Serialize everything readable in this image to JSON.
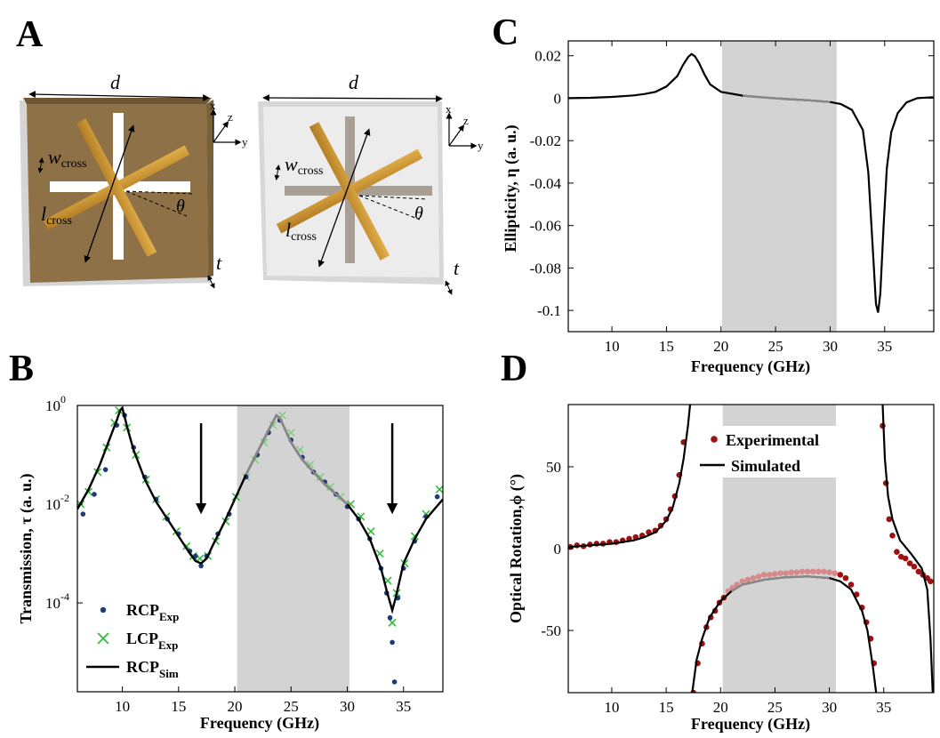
{
  "panels": {
    "A": {
      "letter": "A"
    },
    "B": {
      "letter": "B"
    },
    "C": {
      "letter": "C"
    },
    "D": {
      "letter": "D"
    }
  },
  "schematic": {
    "d_label": "d",
    "x_label": "x",
    "y_label": "y",
    "z_label": "z",
    "w_label": "w",
    "w_sub": "cross",
    "l_label": "l",
    "l_sub": "cross",
    "theta_label": "θ",
    "t_label": "t"
  },
  "colors": {
    "gold": "#c8922e",
    "gold_dark": "#a8701c",
    "substrate_gold": "#8f7148",
    "substrate_clear": "#eceded",
    "shade": "#d3d3d3",
    "navy": "#1f3a7a",
    "green": "#2fbf3a",
    "dark_red": "#a01010",
    "pink": "#d88a8a",
    "gray_line": "#888888"
  },
  "chart_data": [
    {
      "id": "B",
      "type": "line",
      "scale_y": "log",
      "xlabel": "Frequency (GHz)",
      "ylabel": "Transmission, τ (a. u.)",
      "xlim": [
        6,
        38.5
      ],
      "ylim_exp": [
        -5.8,
        0
      ],
      "xticks": [
        10,
        15,
        20,
        25,
        30,
        35
      ],
      "yticks": [
        {
          "exp": 0,
          "label": "10",
          "sup": "0"
        },
        {
          "exp": -2,
          "label": "10",
          "sup": "-2"
        },
        {
          "exp": -4,
          "label": "10",
          "sup": "-4"
        }
      ],
      "shaded": [
        20.2,
        30.2
      ],
      "arrows_x": [
        17,
        34
      ],
      "legend": {
        "position": "bottom-left",
        "items": [
          {
            "main": "RCP",
            "sub": "Exp",
            "marker": "dot"
          },
          {
            "main": "LCP",
            "sub": "Exp",
            "marker": "cross"
          },
          {
            "main": "RCP",
            "sub": "Sim",
            "marker": "line"
          }
        ]
      },
      "series": [
        {
          "name": "RCP_Sim",
          "x": [
            6,
            7,
            8,
            9,
            9.5,
            9.8,
            10,
            10.5,
            11,
            12,
            13,
            14,
            15,
            16,
            16.5,
            17,
            17.5,
            18,
            19,
            20,
            21,
            22,
            23,
            23.7,
            24,
            24.5,
            25,
            26,
            27,
            28,
            29,
            30,
            31,
            32,
            33,
            33.5,
            34,
            34.3,
            34.8,
            35,
            36,
            37,
            38.5
          ],
          "y_exp": [
            -2.1,
            -1.7,
            -1.2,
            -0.6,
            -0.3,
            -0.1,
            -0.05,
            -0.5,
            -0.9,
            -1.5,
            -1.95,
            -2.3,
            -2.65,
            -3.0,
            -3.15,
            -3.2,
            -3.1,
            -2.85,
            -2.4,
            -1.9,
            -1.4,
            -0.95,
            -0.5,
            -0.2,
            -0.25,
            -0.5,
            -0.75,
            -1.1,
            -1.35,
            -1.6,
            -1.8,
            -2.0,
            -2.3,
            -2.7,
            -3.3,
            -3.75,
            -4.15,
            -3.9,
            -3.4,
            -3.2,
            -2.7,
            -2.3,
            -1.9
          ]
        },
        {
          "name": "RCP_Exp",
          "x": [
            6.5,
            7.5,
            8.5,
            9.5,
            10.2,
            11,
            12,
            13,
            14,
            15,
            16,
            16.5,
            17,
            17.5,
            18.5,
            19.5,
            21,
            22,
            23,
            24,
            25,
            26,
            27,
            28,
            29,
            30,
            31,
            32,
            33,
            33.5,
            33.8,
            34,
            34.2,
            34.5,
            35,
            36,
            37,
            38
          ],
          "y_exp": [
            -2.2,
            -1.8,
            -1.3,
            -0.4,
            -0.2,
            -0.85,
            -1.45,
            -1.9,
            -2.3,
            -2.6,
            -2.95,
            -3.05,
            -3.25,
            -3.05,
            -2.6,
            -2.2,
            -1.45,
            -1.0,
            -0.55,
            -0.3,
            -0.7,
            -1.05,
            -1.35,
            -1.55,
            -1.8,
            -2.05,
            -2.3,
            -2.7,
            -3.3,
            -3.8,
            -4.3,
            -4.8,
            -5.6,
            -3.9,
            -3.3,
            -2.75,
            -2.25,
            -1.85
          ]
        },
        {
          "name": "LCP_Exp",
          "x": [
            6.3,
            7,
            7.8,
            8.6,
            9.3,
            9.7,
            10.4,
            11.2,
            12.1,
            13,
            13.9,
            14.8,
            15.7,
            16.3,
            16.9,
            17.6,
            18.3,
            19.2,
            20.1,
            21,
            21.8,
            22.6,
            23.4,
            24.2,
            25,
            25.8,
            26.7,
            27.6,
            28.5,
            29.4,
            30.3,
            31.2,
            32.1,
            32.9,
            33.6,
            34,
            34.4,
            35.1,
            36,
            37,
            38.2
          ],
          "y_exp": [
            -2.0,
            -1.75,
            -1.35,
            -0.85,
            -0.35,
            -0.1,
            -0.45,
            -1.0,
            -1.5,
            -1.9,
            -2.25,
            -2.55,
            -2.85,
            -3.05,
            -3.1,
            -3.05,
            -2.75,
            -2.35,
            -1.85,
            -1.45,
            -1.1,
            -0.75,
            -0.4,
            -0.2,
            -0.55,
            -0.9,
            -1.2,
            -1.45,
            -1.65,
            -1.85,
            -2.0,
            -2.25,
            -2.55,
            -3.0,
            -3.55,
            -4.4,
            -3.8,
            -3.2,
            -2.65,
            -2.2,
            -1.7
          ]
        }
      ]
    },
    {
      "id": "C",
      "type": "line",
      "xlabel": "Frequency (GHz)",
      "ylabel": "Ellipticity, η (a. u.)",
      "xlim": [
        6,
        39.5
      ],
      "ylim": [
        -0.11,
        0.027
      ],
      "xticks": [
        10,
        15,
        20,
        25,
        30,
        35
      ],
      "yticks": [
        0.02,
        0,
        -0.02,
        -0.04,
        -0.06,
        -0.08,
        -0.1
      ],
      "ytick_labels": [
        "0.02",
        "0",
        "-0.02",
        "-0.04",
        "-0.06",
        "-0.08",
        "-0.1"
      ],
      "shaded": [
        20.1,
        30.6
      ],
      "series": [
        {
          "name": "Simulated",
          "x": [
            6,
            8,
            10,
            12,
            13,
            14,
            15,
            16,
            16.5,
            17,
            17.3,
            17.6,
            18,
            18.5,
            19,
            20,
            22,
            24,
            26,
            28,
            30,
            31,
            32,
            33,
            33.5,
            33.9,
            34.2,
            34.4,
            34.6,
            34.9,
            35.2,
            35.6,
            36.2,
            37,
            38,
            39.5
          ],
          "y": [
            0,
            0.0002,
            0.0006,
            0.0013,
            0.002,
            0.003,
            0.0055,
            0.0105,
            0.0155,
            0.0195,
            0.0208,
            0.0198,
            0.0165,
            0.011,
            0.0065,
            0.003,
            0.0012,
            0.0003,
            -0.0004,
            -0.001,
            -0.0018,
            -0.0028,
            -0.0055,
            -0.015,
            -0.035,
            -0.07,
            -0.097,
            -0.101,
            -0.092,
            -0.06,
            -0.033,
            -0.016,
            -0.007,
            -0.002,
            0,
            0.0005
          ]
        }
      ]
    },
    {
      "id": "D",
      "type": "scatter",
      "xlabel": "Frequency (GHz)",
      "ylabel": "Optical Rotation,ϕ (°)",
      "xlim": [
        6,
        39.6
      ],
      "ylim": [
        -88,
        88
      ],
      "xticks": [
        10,
        15,
        20,
        25,
        30,
        35
      ],
      "yticks": [
        50,
        0,
        -50
      ],
      "ytick_labels": [
        "50",
        "0",
        "-50"
      ],
      "shaded": [
        20.2,
        30.6
      ],
      "legend": {
        "position": "top",
        "items": [
          {
            "label": "Experimental",
            "marker": "dot"
          },
          {
            "label": "Simulated",
            "marker": "line"
          }
        ]
      },
      "series": [
        {
          "name": "Simulated",
          "segments": [
            {
              "x": [
                6,
                8,
                10,
                12,
                13,
                14,
                15,
                15.6,
                16.2,
                16.6,
                17,
                17.2
              ],
              "y": [
                1,
                2,
                3,
                5,
                7,
                10,
                17,
                25,
                40,
                55,
                75,
                88
              ]
            },
            {
              "x": [
                17.4,
                17.8,
                18.3,
                19,
                20,
                21,
                22,
                24,
                26,
                28,
                30,
                31,
                32,
                33,
                33.5,
                34,
                34.3
              ],
              "y": [
                -88,
                -68,
                -55,
                -42,
                -32,
                -26,
                -22,
                -19,
                -17.5,
                -17,
                -18,
                -20,
                -25,
                -38,
                -50,
                -72,
                -88
              ]
            },
            {
              "x": [
                34.9,
                35.1,
                35.4,
                35.8,
                36.5,
                37.5,
                38.5,
                39,
                39.3,
                39.5
              ],
              "y": [
                88,
                55,
                32,
                18,
                5,
                -3,
                -12,
                -25,
                -55,
                -88
              ]
            }
          ]
        },
        {
          "name": "Experimental",
          "x": [
            6.2,
            6.8,
            7.4,
            8,
            8.6,
            9.2,
            9.8,
            10.4,
            11,
            11.6,
            12.2,
            12.8,
            13.4,
            14,
            14.5,
            15,
            15.4,
            15.8,
            16.2,
            16.6,
            17.5,
            17.9,
            18.3,
            18.7,
            19.1,
            19.5,
            19.9,
            20.3,
            20.7,
            21.1,
            21.5,
            22,
            22.5,
            23,
            23.5,
            24,
            24.5,
            25,
            25.5,
            26,
            26.5,
            27,
            27.5,
            28,
            28.5,
            29,
            29.5,
            30,
            30.5,
            31,
            31.5,
            32,
            32.5,
            33,
            33.4,
            33.8,
            34.1,
            34.9,
            35.2,
            35.5,
            35.8,
            36.2,
            36.6,
            37,
            37.4,
            37.8,
            38.2,
            38.6,
            39,
            39.3
          ],
          "y": [
            1,
            2,
            1.5,
            2.5,
            3,
            3,
            4,
            4,
            5,
            6,
            7,
            8,
            10,
            11,
            14,
            18,
            24,
            32,
            45,
            65,
            -88,
            -70,
            -58,
            -48,
            -42,
            -38,
            -33,
            -30,
            -26,
            -24,
            -22,
            -20,
            -19,
            -18,
            -17,
            -16,
            -16,
            -15.5,
            -15,
            -15,
            -14.5,
            -14.5,
            -14,
            -14,
            -14,
            -14,
            -14,
            -14.5,
            -15,
            -16,
            -18,
            -22,
            -28,
            -36,
            -45,
            -55,
            -70,
            75,
            40,
            18,
            8,
            -2,
            -5,
            -6,
            -9,
            -11,
            -14,
            -16,
            -18,
            -20
          ]
        }
      ]
    }
  ]
}
